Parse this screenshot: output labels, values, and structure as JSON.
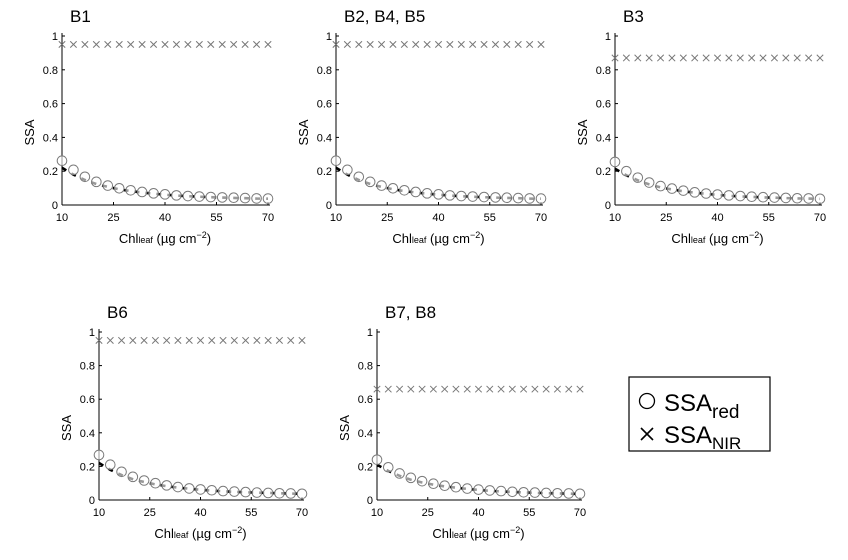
{
  "legend": {
    "position": "right",
    "entries": [
      {
        "marker": "circle",
        "label": "SSA",
        "sub": "red"
      },
      {
        "marker": "cross",
        "label": "SSA",
        "sub": "NIR"
      }
    ]
  },
  "chart_data": [
    {
      "type": "scatter",
      "title": "B1",
      "xlabel": "Chl",
      "xlabel_sub": "leaf",
      "xlabel_unit": " (µg cm",
      "xlabel_exp": "−2",
      "xlabel_close": ")",
      "ylabel": "SSA",
      "xlim": [
        10,
        70
      ],
      "ylim": [
        0,
        1
      ],
      "xticks": [
        "10",
        "25",
        "40",
        "55",
        "70"
      ],
      "yticks": [
        "0",
        "0.2",
        "0.4",
        "0.6",
        "0.8",
        "1"
      ],
      "x": [
        10,
        13.33,
        16.67,
        20,
        23.33,
        26.67,
        30,
        33.33,
        36.67,
        40,
        43.33,
        46.67,
        50,
        53.33,
        56.67,
        60,
        63.33,
        66.67,
        70
      ],
      "series": [
        {
          "name": "SSA_red",
          "marker": "circle",
          "values": [
            0.262,
            0.208,
            0.167,
            0.137,
            0.115,
            0.099,
            0.087,
            0.077,
            0.069,
            0.063,
            0.057,
            0.053,
            0.05,
            0.047,
            0.045,
            0.043,
            0.041,
            0.039,
            0.038
          ]
        },
        {
          "name": "SSA_NIR",
          "marker": "cross",
          "values": [
            0.95,
            0.95,
            0.95,
            0.95,
            0.95,
            0.95,
            0.95,
            0.95,
            0.95,
            0.95,
            0.95,
            0.95,
            0.95,
            0.95,
            0.95,
            0.95,
            0.95,
            0.95,
            0.95
          ]
        },
        {
          "name": "fit",
          "marker": "line",
          "values": [
            0.22,
            0.18,
            0.148,
            0.124,
            0.107,
            0.093,
            0.082,
            0.074,
            0.067,
            0.061,
            0.056,
            0.052,
            0.049,
            0.046,
            0.044,
            0.042,
            0.04,
            0.038,
            0.037
          ]
        }
      ]
    },
    {
      "type": "scatter",
      "title": "B2, B4, B5",
      "xlabel": "Chl",
      "xlabel_sub": "leaf",
      "xlabel_unit": " (µg cm",
      "xlabel_exp": "−2",
      "xlabel_close": ")",
      "ylabel": "SSA",
      "xlim": [
        10,
        70
      ],
      "ylim": [
        0,
        1
      ],
      "xticks": [
        "10",
        "25",
        "40",
        "55",
        "70"
      ],
      "yticks": [
        "0",
        "0.2",
        "0.4",
        "0.6",
        "0.8",
        "1"
      ],
      "x": [
        10,
        13.33,
        16.67,
        20,
        23.33,
        26.67,
        30,
        33.33,
        36.67,
        40,
        43.33,
        46.67,
        50,
        53.33,
        56.67,
        60,
        63.33,
        66.67,
        70
      ],
      "series": [
        {
          "name": "SSA_red",
          "marker": "circle",
          "values": [
            0.262,
            0.208,
            0.167,
            0.137,
            0.115,
            0.099,
            0.087,
            0.077,
            0.069,
            0.063,
            0.057,
            0.053,
            0.05,
            0.047,
            0.045,
            0.043,
            0.041,
            0.039,
            0.038
          ]
        },
        {
          "name": "SSA_NIR",
          "marker": "cross",
          "values": [
            0.95,
            0.95,
            0.95,
            0.95,
            0.95,
            0.95,
            0.95,
            0.95,
            0.95,
            0.95,
            0.95,
            0.95,
            0.95,
            0.95,
            0.95,
            0.95,
            0.95,
            0.95,
            0.95
          ]
        },
        {
          "name": "fit",
          "marker": "line",
          "values": [
            0.22,
            0.18,
            0.148,
            0.124,
            0.107,
            0.093,
            0.082,
            0.074,
            0.067,
            0.061,
            0.056,
            0.052,
            0.049,
            0.046,
            0.044,
            0.042,
            0.04,
            0.038,
            0.037
          ]
        }
      ]
    },
    {
      "type": "scatter",
      "title": "B3",
      "xlabel": "Chl",
      "xlabel_sub": "leaf",
      "xlabel_unit": " (µg cm",
      "xlabel_exp": "−2",
      "xlabel_close": ")",
      "ylabel": "SSA",
      "xlim": [
        10,
        70
      ],
      "ylim": [
        0,
        1
      ],
      "xticks": [
        "10",
        "25",
        "40",
        "55",
        "70"
      ],
      "yticks": [
        "0",
        "0.2",
        "0.4",
        "0.6",
        "0.8",
        "1"
      ],
      "x": [
        10,
        13.33,
        16.67,
        20,
        23.33,
        26.67,
        30,
        33.33,
        36.67,
        40,
        43.33,
        46.67,
        50,
        53.33,
        56.67,
        60,
        63.33,
        66.67,
        70
      ],
      "series": [
        {
          "name": "SSA_red",
          "marker": "circle",
          "values": [
            0.255,
            0.2,
            0.162,
            0.133,
            0.112,
            0.097,
            0.085,
            0.075,
            0.068,
            0.062,
            0.057,
            0.053,
            0.049,
            0.046,
            0.044,
            0.042,
            0.04,
            0.039,
            0.037
          ]
        },
        {
          "name": "SSA_NIR",
          "marker": "cross",
          "values": [
            0.87,
            0.87,
            0.87,
            0.87,
            0.87,
            0.87,
            0.87,
            0.87,
            0.87,
            0.87,
            0.87,
            0.87,
            0.87,
            0.87,
            0.87,
            0.87,
            0.87,
            0.87,
            0.87
          ]
        },
        {
          "name": "fit",
          "marker": "line",
          "values": [
            0.215,
            0.176,
            0.146,
            0.122,
            0.105,
            0.092,
            0.081,
            0.073,
            0.066,
            0.06,
            0.055,
            0.051,
            0.048,
            0.045,
            0.043,
            0.041,
            0.039,
            0.038,
            0.036
          ]
        }
      ]
    },
    {
      "type": "scatter",
      "title": "B6",
      "xlabel": "Chl",
      "xlabel_sub": "leaf",
      "xlabel_unit": " (µg cm",
      "xlabel_exp": "−2",
      "xlabel_close": ")",
      "ylabel": "SSA",
      "xlim": [
        10,
        70
      ],
      "ylim": [
        0,
        1
      ],
      "xticks": [
        "10",
        "25",
        "40",
        "55",
        "70"
      ],
      "yticks": [
        "0",
        "0.2",
        "0.4",
        "0.6",
        "0.8",
        "1"
      ],
      "x": [
        10,
        13.33,
        16.67,
        20,
        23.33,
        26.67,
        30,
        33.33,
        36.67,
        40,
        43.33,
        46.67,
        50,
        53.33,
        56.67,
        60,
        63.33,
        66.67,
        70
      ],
      "series": [
        {
          "name": "SSA_red",
          "marker": "circle",
          "values": [
            0.268,
            0.21,
            0.168,
            0.138,
            0.116,
            0.1,
            0.087,
            0.077,
            0.069,
            0.063,
            0.058,
            0.053,
            0.05,
            0.047,
            0.044,
            0.042,
            0.04,
            0.039,
            0.037
          ]
        },
        {
          "name": "SSA_NIR",
          "marker": "cross",
          "values": [
            0.95,
            0.95,
            0.95,
            0.95,
            0.95,
            0.95,
            0.95,
            0.95,
            0.95,
            0.95,
            0.95,
            0.95,
            0.95,
            0.95,
            0.95,
            0.95,
            0.95,
            0.95,
            0.95
          ]
        },
        {
          "name": "fit",
          "marker": "line",
          "values": [
            0.22,
            0.18,
            0.148,
            0.124,
            0.107,
            0.093,
            0.082,
            0.074,
            0.067,
            0.061,
            0.056,
            0.052,
            0.049,
            0.046,
            0.044,
            0.042,
            0.04,
            0.038,
            0.037
          ]
        }
      ]
    },
    {
      "type": "scatter",
      "title": "B7, B8",
      "xlabel": "Chl",
      "xlabel_sub": "leaf",
      "xlabel_unit": " (µg cm",
      "xlabel_exp": "−2",
      "xlabel_close": ")",
      "ylabel": "SSA",
      "xlim": [
        10,
        70
      ],
      "ylim": [
        0,
        1
      ],
      "xticks": [
        "10",
        "25",
        "40",
        "55",
        "70"
      ],
      "yticks": [
        "0",
        "0.2",
        "0.4",
        "0.6",
        "0.8",
        "1"
      ],
      "x": [
        10,
        13.33,
        16.67,
        20,
        23.33,
        26.67,
        30,
        33.33,
        36.67,
        40,
        43.33,
        46.67,
        50,
        53.33,
        56.67,
        60,
        63.33,
        66.67,
        70
      ],
      "series": [
        {
          "name": "SSA_red",
          "marker": "circle",
          "values": [
            0.24,
            0.195,
            0.158,
            0.132,
            0.112,
            0.097,
            0.085,
            0.076,
            0.068,
            0.062,
            0.057,
            0.053,
            0.049,
            0.046,
            0.044,
            0.042,
            0.04,
            0.039,
            0.037
          ]
        },
        {
          "name": "SSA_NIR",
          "marker": "cross",
          "values": [
            0.66,
            0.66,
            0.66,
            0.66,
            0.66,
            0.66,
            0.66,
            0.66,
            0.66,
            0.66,
            0.66,
            0.66,
            0.66,
            0.66,
            0.66,
            0.66,
            0.66,
            0.66,
            0.66
          ]
        },
        {
          "name": "fit",
          "marker": "line",
          "values": [
            0.21,
            0.173,
            0.144,
            0.121,
            0.104,
            0.091,
            0.081,
            0.073,
            0.066,
            0.06,
            0.055,
            0.051,
            0.048,
            0.045,
            0.043,
            0.041,
            0.039,
            0.038,
            0.036
          ]
        }
      ]
    }
  ]
}
